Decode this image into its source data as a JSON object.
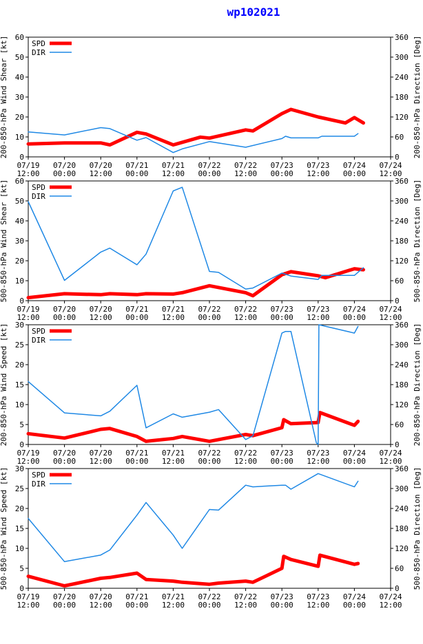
{
  "title": "wp102021",
  "colors": {
    "spd": "#ff0000",
    "dir": "#1e88e5",
    "title": "#0000ff"
  },
  "legend": {
    "spd": "SPD",
    "dir": "DIR"
  },
  "x_ticks": [
    [
      "07/19",
      "12:00"
    ],
    [
      "07/20",
      "00:00"
    ],
    [
      "07/20",
      "12:00"
    ],
    [
      "07/21",
      "00:00"
    ],
    [
      "07/21",
      "12:00"
    ],
    [
      "07/22",
      "00:00"
    ],
    [
      "07/22",
      "12:00"
    ],
    [
      "07/23",
      "00:00"
    ],
    [
      "07/23",
      "12:00"
    ],
    [
      "07/24",
      "00:00"
    ],
    [
      "07/24",
      "12:00"
    ]
  ],
  "chart_data": [
    {
      "type": "line",
      "ylabel_left": "200-850-hPa Wind Shear [kt]",
      "ylabel_right": "200-850-hPa Direction [Deg]",
      "ylim_left": [
        0,
        60
      ],
      "yticks_left": [
        0,
        10,
        20,
        30,
        40,
        50,
        60
      ],
      "ylim_right": [
        0,
        360
      ],
      "yticks_right": [
        0,
        60,
        120,
        180,
        240,
        300,
        360
      ],
      "xlim": [
        0,
        10
      ],
      "series": [
        {
          "name": "SPD",
          "axis": "left",
          "x": [
            0,
            1,
            2,
            2.25,
            3,
            3.25,
            4,
            4.75,
            5,
            6,
            6.2,
            7,
            7.25,
            8,
            8.75,
            9,
            9.25
          ],
          "y": [
            6.5,
            7,
            7,
            6,
            12.3,
            11.5,
            6,
            9.9,
            9.4,
            13.5,
            13,
            21.7,
            23.8,
            20,
            17,
            19.7,
            17
          ]
        },
        {
          "name": "DIR",
          "axis": "right",
          "x": [
            0,
            1,
            2,
            2.25,
            3,
            3.25,
            4,
            4.25,
            5,
            6,
            7,
            7.1,
            7.25,
            8,
            8.1,
            9,
            9.1
          ],
          "y": [
            75,
            66,
            88,
            85,
            50,
            58,
            13,
            24,
            46,
            29,
            55,
            62,
            57,
            57,
            62,
            62,
            70
          ]
        }
      ]
    },
    {
      "type": "line",
      "ylabel_left": "500-850-hPa Wind Shear [kt]",
      "ylabel_right": "500-850-hPa Direction [Deg]",
      "ylim_left": [
        0,
        60
      ],
      "yticks_left": [
        0,
        10,
        20,
        30,
        40,
        50,
        60
      ],
      "ylim_right": [
        0,
        360
      ],
      "yticks_right": [
        0,
        60,
        120,
        180,
        240,
        300,
        360
      ],
      "xlim": [
        0,
        10
      ],
      "series": [
        {
          "name": "SPD",
          "axis": "left",
          "x": [
            0,
            1,
            2,
            2.25,
            3,
            3.25,
            4,
            4.25,
            5,
            6,
            6.2,
            7,
            7.25,
            8,
            8.2,
            9,
            9.25
          ],
          "y": [
            1.5,
            3.5,
            3,
            3.5,
            3,
            3.5,
            3.3,
            4,
            7.5,
            4,
            2.5,
            13,
            14.5,
            12.5,
            11.5,
            16,
            15.5
          ]
        },
        {
          "name": "DIR",
          "axis": "right",
          "x": [
            0,
            1,
            2,
            2.25,
            3,
            3.25,
            4,
            4.25,
            5,
            5.25,
            6,
            6.2,
            7,
            7.25,
            8,
            8.1,
            9,
            9.25
          ],
          "y": [
            298,
            61,
            146,
            158,
            108,
            140,
            330,
            341,
            88,
            85,
            35,
            38,
            83,
            74,
            64,
            76,
            76,
            99
          ]
        }
      ]
    },
    {
      "type": "line",
      "ylabel_left": "200-850-hPa Wind Speed [kt]",
      "ylabel_right": "200-850-hPa Direction [Deg]",
      "ylim_left": [
        0,
        30
      ],
      "yticks_left": [
        0,
        5,
        10,
        15,
        20,
        25,
        30
      ],
      "ylim_right": [
        0,
        360
      ],
      "yticks_right": [
        0,
        60,
        120,
        180,
        240,
        300,
        360
      ],
      "xlim": [
        0,
        10
      ],
      "series": [
        {
          "name": "SPD",
          "axis": "left",
          "x": [
            0,
            1,
            2,
            2.25,
            3,
            3.25,
            4,
            4.25,
            5,
            6,
            6.2,
            7,
            7.05,
            7.25,
            8,
            8.05,
            9,
            9.1
          ],
          "y": [
            2.7,
            1.6,
            3.8,
            4,
            2,
            0.8,
            1.5,
            2,
            0.8,
            2.5,
            2.2,
            4.2,
            6.2,
            5.2,
            5.5,
            8,
            4.8,
            5.8
          ]
        },
        {
          "name": "DIR",
          "axis": "right",
          "x": [
            0,
            1,
            2,
            2.25,
            3,
            3.25,
            4,
            4.25,
            5,
            5.25,
            6,
            6.2,
            7,
            7.1,
            7.25,
            7.95,
            8,
            8.02,
            9,
            9.1
          ],
          "y": [
            189,
            95,
            86,
            100,
            178,
            50,
            92,
            82,
            97,
            105,
            15,
            26,
            335,
            340,
            340,
            5,
            0,
            360,
            335,
            355
          ]
        }
      ]
    },
    {
      "type": "line",
      "ylabel_left": "500-850-hPa Wind Speed [kt]",
      "ylabel_right": "500-850-hPa Direction [Deg]",
      "ylim_left": [
        0,
        30
      ],
      "yticks_left": [
        0,
        5,
        10,
        15,
        20,
        25,
        30
      ],
      "ylim_right": [
        0,
        360
      ],
      "yticks_right": [
        0,
        60,
        120,
        180,
        240,
        300,
        360
      ],
      "xlim": [
        0,
        10
      ],
      "series": [
        {
          "name": "SPD",
          "axis": "left",
          "x": [
            0,
            1,
            2,
            2.25,
            3,
            3.25,
            4,
            4.25,
            5,
            5.25,
            6,
            6.2,
            7,
            7.05,
            7.25,
            8,
            8.05,
            9,
            9.1
          ],
          "y": [
            3,
            0.6,
            2.5,
            2.7,
            3.8,
            2.2,
            1.8,
            1.5,
            1,
            1.3,
            1.8,
            1.5,
            5,
            8,
            7.2,
            5.5,
            8.3,
            6,
            6.2
          ]
        },
        {
          "name": "DIR",
          "axis": "right",
          "x": [
            0,
            1,
            2,
            2.25,
            3,
            3.25,
            4,
            4.25,
            5,
            5.25,
            6,
            6.2,
            7,
            7.1,
            7.25,
            8,
            9,
            9.1
          ],
          "y": [
            210,
            80,
            100,
            115,
            220,
            258,
            160,
            120,
            237,
            235,
            310,
            305,
            310,
            310,
            298,
            345,
            305,
            322
          ]
        }
      ]
    }
  ]
}
